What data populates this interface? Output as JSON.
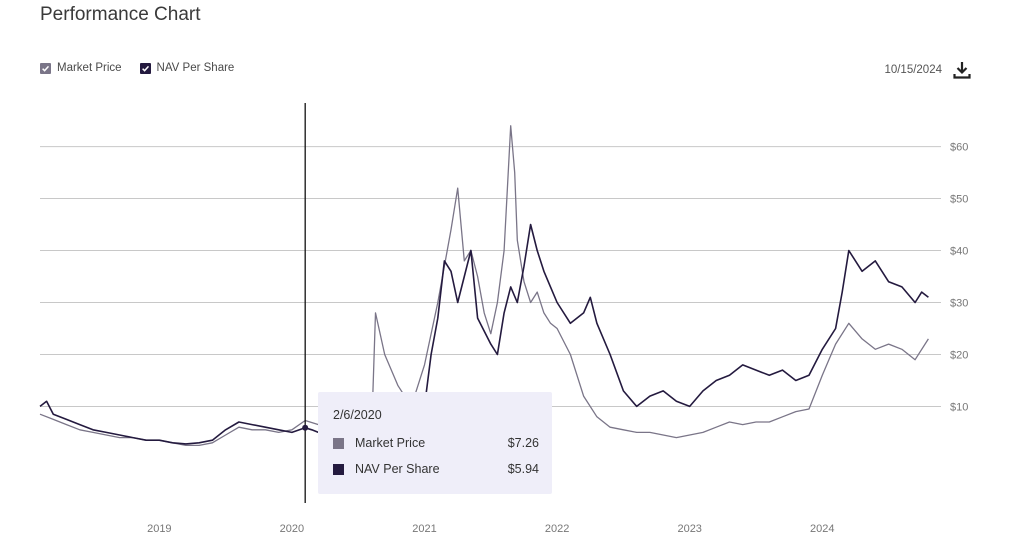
{
  "page": {
    "title": "Performance Chart",
    "date": "10/15/2024",
    "download_icon": "download-icon"
  },
  "colors": {
    "market": "#7a7588",
    "nav": "#241a3f",
    "grid": "#c8c8c8",
    "tooltip_bg": "#efeef9"
  },
  "legend": [
    {
      "label": "Market Price",
      "color": "#7a7588",
      "checked": true
    },
    {
      "label": "NAV Per Share",
      "color": "#241a3f",
      "checked": true
    }
  ],
  "tooltip": {
    "date": "2/6/2020",
    "rows": [
      {
        "label": "Market Price",
        "value": "$7.26",
        "color": "#7a7588"
      },
      {
        "label": "NAV Per Share",
        "value": "$5.94",
        "color": "#241a3f"
      }
    ]
  },
  "chart_data": {
    "type": "line",
    "x_unit": "year",
    "xlim": [
      2018.1,
      2024.85
    ],
    "ylim": [
      -8,
      68
    ],
    "x_ticks": [
      {
        "value": 2019,
        "label": "2019"
      },
      {
        "value": 2020,
        "label": "2020"
      },
      {
        "value": 2021,
        "label": "2021"
      },
      {
        "value": 2022,
        "label": "2022"
      },
      {
        "value": 2023,
        "label": "2023"
      },
      {
        "value": 2024,
        "label": "2024"
      }
    ],
    "y_ticks": [
      {
        "value": 10,
        "label": "$10"
      },
      {
        "value": 20,
        "label": "$20"
      },
      {
        "value": 30,
        "label": "$30"
      },
      {
        "value": 40,
        "label": "$40"
      },
      {
        "value": 50,
        "label": "$50"
      },
      {
        "value": 60,
        "label": "$60"
      }
    ],
    "grid": true,
    "legend_position": "top-left",
    "crosshair_x": 2020.1,
    "series": [
      {
        "name": "Market Price",
        "color": "#7a7588",
        "x": [
          2018.1,
          2018.2,
          2018.3,
          2018.4,
          2018.5,
          2018.6,
          2018.7,
          2018.8,
          2018.9,
          2019.0,
          2019.1,
          2019.2,
          2019.3,
          2019.4,
          2019.5,
          2019.6,
          2019.7,
          2019.8,
          2019.9,
          2020.0,
          2020.1,
          2020.2,
          2020.3,
          2020.4,
          2020.5,
          2020.6,
          2020.63,
          2020.7,
          2020.8,
          2020.9,
          2021.0,
          2021.1,
          2021.2,
          2021.25,
          2021.3,
          2021.35,
          2021.4,
          2021.45,
          2021.5,
          2021.55,
          2021.6,
          2021.65,
          2021.68,
          2021.7,
          2021.75,
          2021.8,
          2021.85,
          2021.9,
          2021.95,
          2022.0,
          2022.1,
          2022.2,
          2022.3,
          2022.4,
          2022.5,
          2022.6,
          2022.7,
          2022.8,
          2022.9,
          2023.0,
          2023.1,
          2023.2,
          2023.3,
          2023.4,
          2023.5,
          2023.6,
          2023.7,
          2023.8,
          2023.9,
          2024.0,
          2024.05,
          2024.1,
          2024.2,
          2024.3,
          2024.4,
          2024.5,
          2024.6,
          2024.7,
          2024.8
        ],
        "y": [
          8.5,
          7.5,
          6.5,
          5.5,
          5.0,
          4.5,
          4.0,
          4.0,
          3.5,
          3.5,
          3.0,
          2.5,
          2.5,
          3.0,
          4.5,
          6.0,
          5.5,
          5.5,
          5.0,
          5.5,
          7.3,
          6.5,
          6.0,
          5.5,
          5.0,
          4.5,
          28.0,
          20.0,
          14.0,
          10.0,
          18.0,
          30.0,
          44.0,
          52.0,
          38.0,
          40.0,
          35.0,
          28.0,
          24.0,
          30.0,
          40.0,
          64.0,
          55.0,
          42.0,
          34.0,
          30.0,
          32.0,
          28.0,
          26.0,
          25.0,
          20.0,
          12.0,
          8.0,
          6.0,
          5.5,
          5.0,
          5.0,
          4.5,
          4.0,
          4.5,
          5.0,
          6.0,
          7.0,
          6.5,
          7.0,
          7.0,
          8.0,
          9.0,
          9.5,
          16.0,
          19.0,
          22.0,
          26.0,
          23.0,
          21.0,
          22.0,
          21.0,
          19.0,
          23.0
        ]
      },
      {
        "name": "NAV Per Share",
        "color": "#241a3f",
        "x": [
          2018.1,
          2018.15,
          2018.2,
          2018.3,
          2018.4,
          2018.5,
          2018.6,
          2018.7,
          2018.8,
          2018.9,
          2019.0,
          2019.1,
          2019.2,
          2019.3,
          2019.4,
          2019.5,
          2019.6,
          2019.7,
          2019.8,
          2019.9,
          2020.0,
          2020.1,
          2020.15,
          2020.2,
          2020.4,
          2020.6,
          2020.8,
          2020.9,
          2021.0,
          2021.05,
          2021.1,
          2021.15,
          2021.2,
          2021.25,
          2021.3,
          2021.35,
          2021.4,
          2021.5,
          2021.55,
          2021.6,
          2021.65,
          2021.7,
          2021.75,
          2021.8,
          2021.85,
          2021.9,
          2021.95,
          2022.0,
          2022.1,
          2022.2,
          2022.25,
          2022.3,
          2022.4,
          2022.5,
          2022.6,
          2022.7,
          2022.8,
          2022.9,
          2023.0,
          2023.1,
          2023.2,
          2023.3,
          2023.4,
          2023.5,
          2023.6,
          2023.7,
          2023.8,
          2023.9,
          2024.0,
          2024.1,
          2024.15,
          2024.2,
          2024.3,
          2024.4,
          2024.5,
          2024.6,
          2024.7,
          2024.75,
          2024.8
        ],
        "y": [
          10.0,
          11.0,
          8.5,
          7.5,
          6.5,
          5.5,
          5.0,
          4.5,
          4.0,
          3.5,
          3.5,
          3.0,
          2.8,
          3.0,
          3.5,
          5.5,
          7.0,
          6.5,
          6.0,
          5.5,
          5.0,
          5.9,
          5.5,
          5.0,
          4.0,
          3.0,
          3.0,
          5.0,
          10.0,
          20.0,
          27.0,
          38.0,
          36.0,
          30.0,
          35.0,
          40.0,
          27.0,
          22.0,
          20.0,
          28.0,
          33.0,
          30.0,
          37.0,
          45.0,
          40.0,
          36.0,
          33.0,
          30.0,
          26.0,
          28.0,
          31.0,
          26.0,
          20.0,
          13.0,
          10.0,
          12.0,
          13.0,
          11.0,
          10.0,
          13.0,
          15.0,
          16.0,
          18.0,
          17.0,
          16.0,
          17.0,
          15.0,
          16.0,
          21.0,
          25.0,
          32.0,
          40.0,
          36.0,
          38.0,
          34.0,
          33.0,
          30.0,
          32.0,
          31.0
        ]
      }
    ]
  }
}
